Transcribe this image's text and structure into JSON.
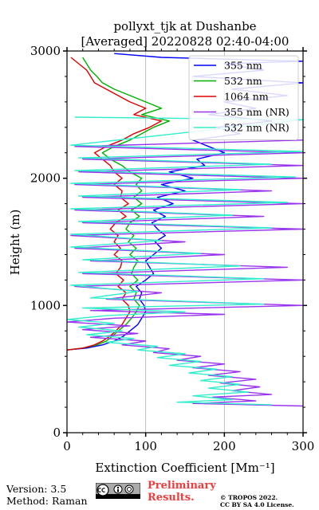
{
  "chart_data": {
    "type": "line",
    "title": [
      "pollyxt_tjk at Dushanbe",
      "[Averaged] 20220828 02:40-04:00"
    ],
    "xlabel": "Extinction Coefficient [Mm⁻¹]",
    "ylabel": "Height (m)",
    "xlim": [
      0,
      300
    ],
    "ylim": [
      0,
      3000
    ],
    "x_ticks": [
      "0",
      "100",
      "200",
      "300"
    ],
    "y_ticks": [
      "0",
      "1000",
      "2000",
      "3000"
    ],
    "grid": "vertical",
    "legend_position": "top-right",
    "series": [
      {
        "name": "355 nm",
        "color": "#0000ff",
        "points": [
          [
            0,
            650
          ],
          [
            25,
            665
          ],
          [
            45,
            690
          ],
          [
            60,
            720
          ],
          [
            72,
            760
          ],
          [
            80,
            800
          ],
          [
            90,
            850
          ],
          [
            95,
            900
          ],
          [
            100,
            950
          ],
          [
            98,
            1000
          ],
          [
            92,
            1050
          ],
          [
            95,
            1100
          ],
          [
            88,
            1150
          ],
          [
            100,
            1200
          ],
          [
            110,
            1250
          ],
          [
            105,
            1300
          ],
          [
            100,
            1350
          ],
          [
            110,
            1400
          ],
          [
            120,
            1450
          ],
          [
            112,
            1500
          ],
          [
            125,
            1550
          ],
          [
            115,
            1600
          ],
          [
            108,
            1650
          ],
          [
            125,
            1700
          ],
          [
            110,
            1750
          ],
          [
            135,
            1800
          ],
          [
            115,
            1850
          ],
          [
            150,
            1900
          ],
          [
            120,
            1950
          ],
          [
            160,
            2000
          ],
          [
            130,
            2050
          ],
          [
            175,
            2100
          ],
          [
            165,
            2150
          ],
          [
            200,
            2200
          ],
          [
            180,
            2250
          ],
          [
            160,
            2300
          ],
          [
            220,
            2350
          ],
          [
            190,
            2400
          ],
          [
            260,
            2450
          ],
          [
            180,
            2500
          ],
          [
            240,
            2550
          ],
          [
            200,
            2600
          ],
          [
            280,
            2650
          ],
          [
            210,
            2700
          ],
          [
            300,
            2750
          ],
          [
            160,
            2800
          ],
          [
            250,
            2850
          ],
          [
            200,
            2900
          ],
          [
            300,
            2920
          ],
          [
            120,
            2950
          ],
          [
            60,
            2980
          ]
        ]
      },
      {
        "name": "532 nm",
        "color": "#00b000",
        "points": [
          [
            0,
            650
          ],
          [
            20,
            665
          ],
          [
            38,
            690
          ],
          [
            50,
            720
          ],
          [
            58,
            760
          ],
          [
            65,
            800
          ],
          [
            75,
            850
          ],
          [
            82,
            900
          ],
          [
            88,
            950
          ],
          [
            92,
            1000
          ],
          [
            85,
            1050
          ],
          [
            88,
            1100
          ],
          [
            80,
            1150
          ],
          [
            90,
            1200
          ],
          [
            82,
            1250
          ],
          [
            85,
            1300
          ],
          [
            90,
            1350
          ],
          [
            80,
            1400
          ],
          [
            88,
            1450
          ],
          [
            78,
            1500
          ],
          [
            85,
            1550
          ],
          [
            75,
            1600
          ],
          [
            80,
            1650
          ],
          [
            92,
            1700
          ],
          [
            82,
            1750
          ],
          [
            95,
            1800
          ],
          [
            85,
            1850
          ],
          [
            95,
            1900
          ],
          [
            88,
            1950
          ],
          [
            95,
            2000
          ],
          [
            80,
            2050
          ],
          [
            70,
            2100
          ],
          [
            55,
            2150
          ],
          [
            45,
            2200
          ],
          [
            60,
            2250
          ],
          [
            80,
            2300
          ],
          [
            95,
            2350
          ],
          [
            110,
            2400
          ],
          [
            130,
            2450
          ],
          [
            95,
            2500
          ],
          [
            120,
            2550
          ],
          [
            100,
            2600
          ],
          [
            80,
            2650
          ],
          [
            60,
            2700
          ],
          [
            45,
            2750
          ],
          [
            38,
            2800
          ],
          [
            30,
            2850
          ],
          [
            25,
            2900
          ],
          [
            20,
            2950
          ]
        ]
      },
      {
        "name": "1064 nm",
        "color": "#dd0000",
        "points": [
          [
            0,
            650
          ],
          [
            20,
            665
          ],
          [
            35,
            690
          ],
          [
            45,
            720
          ],
          [
            55,
            760
          ],
          [
            62,
            800
          ],
          [
            70,
            850
          ],
          [
            75,
            900
          ],
          [
            80,
            950
          ],
          [
            78,
            1000
          ],
          [
            70,
            1050
          ],
          [
            75,
            1100
          ],
          [
            65,
            1150
          ],
          [
            72,
            1200
          ],
          [
            62,
            1250
          ],
          [
            68,
            1300
          ],
          [
            70,
            1350
          ],
          [
            60,
            1400
          ],
          [
            68,
            1450
          ],
          [
            60,
            1500
          ],
          [
            65,
            1550
          ],
          [
            55,
            1600
          ],
          [
            62,
            1650
          ],
          [
            75,
            1700
          ],
          [
            65,
            1750
          ],
          [
            78,
            1800
          ],
          [
            68,
            1850
          ],
          [
            70,
            1900
          ],
          [
            60,
            1950
          ],
          [
            70,
            2000
          ],
          [
            60,
            2050
          ],
          [
            55,
            2100
          ],
          [
            45,
            2150
          ],
          [
            35,
            2200
          ],
          [
            50,
            2250
          ],
          [
            70,
            2300
          ],
          [
            85,
            2350
          ],
          [
            105,
            2400
          ],
          [
            120,
            2450
          ],
          [
            85,
            2500
          ],
          [
            100,
            2550
          ],
          [
            80,
            2600
          ],
          [
            65,
            2650
          ],
          [
            50,
            2700
          ],
          [
            35,
            2750
          ],
          [
            30,
            2800
          ],
          [
            25,
            2850
          ],
          [
            15,
            2900
          ],
          [
            5,
            2950
          ]
        ]
      },
      {
        "name": "355 nm (NR)",
        "color": "#9933ee",
        "points": [
          [
            300,
            210
          ],
          [
            160,
            230
          ],
          [
            240,
            250
          ],
          [
            185,
            280
          ],
          [
            260,
            300
          ],
          [
            210,
            330
          ],
          [
            245,
            360
          ],
          [
            195,
            390
          ],
          [
            240,
            420
          ],
          [
            180,
            450
          ],
          [
            220,
            480
          ],
          [
            160,
            510
          ],
          [
            200,
            540
          ],
          [
            140,
            570
          ],
          [
            170,
            600
          ],
          [
            110,
            630
          ],
          [
            130,
            660
          ],
          [
            70,
            690
          ],
          [
            100,
            720
          ],
          [
            30,
            750
          ],
          [
            90,
            780
          ],
          [
            20,
            810
          ],
          [
            80,
            840
          ],
          [
            0,
            870
          ],
          [
            60,
            900
          ],
          [
            200,
            930
          ],
          [
            30,
            960
          ],
          [
            300,
            1000
          ],
          [
            50,
            1050
          ],
          [
            120,
            1100
          ],
          [
            10,
            1150
          ],
          [
            300,
            1200
          ],
          [
            20,
            1250
          ],
          [
            280,
            1300
          ],
          [
            30,
            1350
          ],
          [
            200,
            1400
          ],
          [
            10,
            1450
          ],
          [
            150,
            1500
          ],
          [
            5,
            1550
          ],
          [
            300,
            1600
          ],
          [
            20,
            1650
          ],
          [
            250,
            1700
          ],
          [
            10,
            1750
          ],
          [
            300,
            1800
          ],
          [
            20,
            1850
          ],
          [
            260,
            1900
          ],
          [
            10,
            1950
          ],
          [
            300,
            2000
          ],
          [
            15,
            2050
          ],
          [
            300,
            2100
          ],
          [
            20,
            2150
          ],
          [
            300,
            2200
          ],
          [
            10,
            2250
          ],
          [
            300,
            2300
          ]
        ]
      },
      {
        "name": "532 nm (NR)",
        "color": "#33eecc",
        "points": [
          [
            260,
            220
          ],
          [
            140,
            240
          ],
          [
            210,
            260
          ],
          [
            160,
            290
          ],
          [
            230,
            320
          ],
          [
            180,
            350
          ],
          [
            220,
            380
          ],
          [
            170,
            410
          ],
          [
            210,
            440
          ],
          [
            155,
            470
          ],
          [
            190,
            500
          ],
          [
            130,
            530
          ],
          [
            170,
            560
          ],
          [
            115,
            590
          ],
          [
            150,
            620
          ],
          [
            90,
            650
          ],
          [
            115,
            680
          ],
          [
            50,
            710
          ],
          [
            85,
            740
          ],
          [
            25,
            770
          ],
          [
            70,
            800
          ],
          [
            15,
            830
          ],
          [
            60,
            860
          ],
          [
            0,
            890
          ],
          [
            50,
            920
          ],
          [
            150,
            950
          ],
          [
            20,
            980
          ],
          [
            250,
            1010
          ],
          [
            30,
            1060
          ],
          [
            90,
            1110
          ],
          [
            5,
            1160
          ],
          [
            250,
            1210
          ],
          [
            15,
            1260
          ],
          [
            220,
            1310
          ],
          [
            20,
            1360
          ],
          [
            170,
            1410
          ],
          [
            5,
            1460
          ],
          [
            120,
            1510
          ],
          [
            5,
            1560
          ],
          [
            260,
            1610
          ],
          [
            15,
            1660
          ],
          [
            210,
            1710
          ],
          [
            5,
            1760
          ],
          [
            280,
            1810
          ],
          [
            15,
            1860
          ],
          [
            220,
            1910
          ],
          [
            5,
            1960
          ],
          [
            290,
            2010
          ],
          [
            10,
            2060
          ],
          [
            260,
            2110
          ],
          [
            15,
            2160
          ],
          [
            300,
            2210
          ],
          [
            5,
            2260
          ],
          [
            300,
            2460
          ],
          [
            10,
            2480
          ]
        ]
      }
    ]
  },
  "footer": {
    "version": "Version: 3.5",
    "method": "Method: Raman",
    "preliminary": [
      "Preliminary",
      "Results."
    ],
    "copyright": [
      "© TROPOS 2022.",
      "CC BY SA 4.0 License."
    ]
  }
}
